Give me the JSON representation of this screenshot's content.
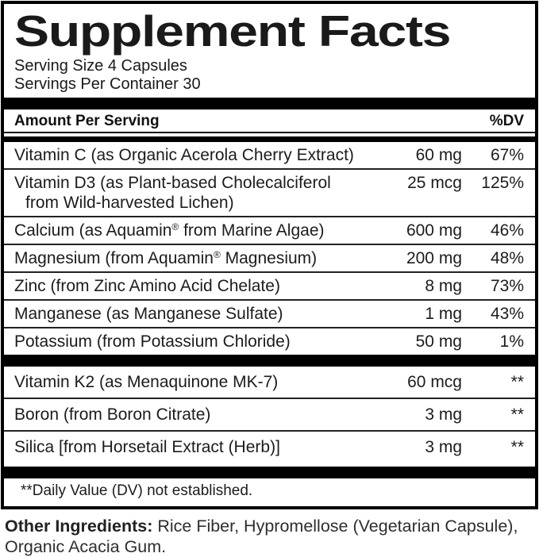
{
  "label": {
    "title": "Supplement Facts",
    "serving_size": "Serving Size 4 Capsules",
    "servings_per_container": "Servings Per Container 30",
    "columns": {
      "amount_header": "Amount Per Serving",
      "dv_header": "%DV"
    },
    "main_rows": [
      {
        "name": "Vitamin C (as Organic Acerola Cherry Extract)",
        "amount": "60 mg",
        "dv": "67%"
      },
      {
        "name": "Vitamin D3 (as Plant-based Cholecalciferol",
        "name_line2": "from Wild-harvested Lichen)",
        "amount": "25 mcg",
        "dv": "125%"
      },
      {
        "name": "Calcium (as Aquamin® from Marine Algae)",
        "amount": "600 mg",
        "dv": "46%"
      },
      {
        "name": "Magnesium (from Aquamin® Magnesium)",
        "amount": "200 mg",
        "dv": "48%"
      },
      {
        "name": "Zinc (from Zinc Amino Acid Chelate)",
        "amount": "8 mg",
        "dv": "73%"
      },
      {
        "name": "Manganese (as Manganese Sulfate)",
        "amount": "1 mg",
        "dv": "43%"
      },
      {
        "name": "Potassium (from Potassium Chloride)",
        "amount": "50 mg",
        "dv": "1%"
      }
    ],
    "secondary_rows": [
      {
        "name": "Vitamin K2 (as Menaquinone MK-7)",
        "amount": "60 mcg",
        "dv": "**"
      },
      {
        "name": "Boron (from Boron Citrate)",
        "amount": "3 mg",
        "dv": "**"
      },
      {
        "name": "Silica [from Horsetail Extract (Herb)]",
        "amount": "3 mg",
        "dv": "**"
      }
    ],
    "footnote": "**Daily Value (DV) not established."
  },
  "other_ingredients": {
    "label": "Other Ingredients:",
    "text": " Rice Fiber, Hypromellose (Vegetarian Capsule), Organic Acacia Gum."
  }
}
